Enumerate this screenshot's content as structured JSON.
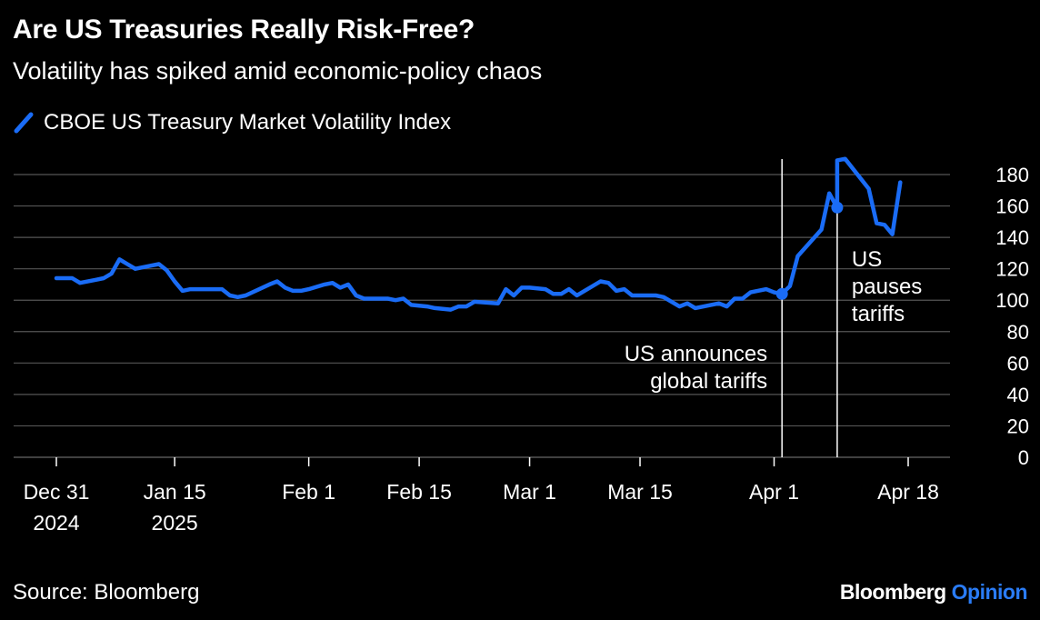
{
  "header": {
    "title": "Are US Treasuries Really Risk-Free?",
    "subtitle": "Volatility has spiked amid economic-policy chaos"
  },
  "footer": {
    "source": "Source: Bloomberg",
    "brand_main": "Bloomberg",
    "brand_accent": "Opinion"
  },
  "colors": {
    "background": "#000000",
    "series": "#1a6cf6",
    "grid": "#555555",
    "text": "#ffffff",
    "brand_accent": "#2a7cf6"
  },
  "chart_data": {
    "type": "line",
    "legend_position": "top-left",
    "grid": true,
    "y_axis_side": "right",
    "ylim": [
      0,
      190
    ],
    "y_ticks": [
      0,
      20,
      40,
      60,
      80,
      100,
      120,
      140,
      160,
      180
    ],
    "x_ticks": [
      {
        "date": "2024-12-31",
        "label": "Dec 31",
        "sublabel": "2024"
      },
      {
        "date": "2025-01-15",
        "label": "Jan 15",
        "sublabel": "2025"
      },
      {
        "date": "2025-02-01",
        "label": "Feb 1",
        "sublabel": ""
      },
      {
        "date": "2025-02-15",
        "label": "Feb 15",
        "sublabel": ""
      },
      {
        "date": "2025-03-01",
        "label": "Mar 1",
        "sublabel": ""
      },
      {
        "date": "2025-03-15",
        "label": "Mar 15",
        "sublabel": ""
      },
      {
        "date": "2025-04-01",
        "label": "Apr 1",
        "sublabel": ""
      },
      {
        "date": "2025-04-18",
        "label": "Apr 18",
        "sublabel": ""
      }
    ],
    "series": [
      {
        "name": "CBOE US Treasury Market Volatility Index",
        "points": [
          {
            "x": "2024-12-31",
            "y": 114
          },
          {
            "x": "2025-01-01",
            "y": 114
          },
          {
            "x": "2025-01-02",
            "y": 114
          },
          {
            "x": "2025-01-03",
            "y": 111
          },
          {
            "x": "2025-01-05",
            "y": 113
          },
          {
            "x": "2025-01-06",
            "y": 114
          },
          {
            "x": "2025-01-07",
            "y": 117
          },
          {
            "x": "2025-01-08",
            "y": 126
          },
          {
            "x": "2025-01-09",
            "y": 123
          },
          {
            "x": "2025-01-10",
            "y": 120
          },
          {
            "x": "2025-01-12",
            "y": 122
          },
          {
            "x": "2025-01-13",
            "y": 123
          },
          {
            "x": "2025-01-14",
            "y": 119
          },
          {
            "x": "2025-01-15",
            "y": 112
          },
          {
            "x": "2025-01-16",
            "y": 106
          },
          {
            "x": "2025-01-17",
            "y": 107
          },
          {
            "x": "2025-01-18",
            "y": 107
          },
          {
            "x": "2025-01-20",
            "y": 107
          },
          {
            "x": "2025-01-21",
            "y": 107
          },
          {
            "x": "2025-01-22",
            "y": 103
          },
          {
            "x": "2025-01-23",
            "y": 102
          },
          {
            "x": "2025-01-24",
            "y": 103
          },
          {
            "x": "2025-01-27",
            "y": 110
          },
          {
            "x": "2025-01-28",
            "y": 112
          },
          {
            "x": "2025-01-29",
            "y": 108
          },
          {
            "x": "2025-01-30",
            "y": 106
          },
          {
            "x": "2025-01-31",
            "y": 106
          },
          {
            "x": "2025-02-01",
            "y": 107
          },
          {
            "x": "2025-02-03",
            "y": 110
          },
          {
            "x": "2025-02-04",
            "y": 111
          },
          {
            "x": "2025-02-05",
            "y": 108
          },
          {
            "x": "2025-02-06",
            "y": 110
          },
          {
            "x": "2025-02-07",
            "y": 103
          },
          {
            "x": "2025-02-08",
            "y": 101
          },
          {
            "x": "2025-02-11",
            "y": 101
          },
          {
            "x": "2025-02-12",
            "y": 100
          },
          {
            "x": "2025-02-13",
            "y": 101
          },
          {
            "x": "2025-02-14",
            "y": 97
          },
          {
            "x": "2025-02-16",
            "y": 96
          },
          {
            "x": "2025-02-17",
            "y": 95
          },
          {
            "x": "2025-02-19",
            "y": 94
          },
          {
            "x": "2025-02-20",
            "y": 96
          },
          {
            "x": "2025-02-21",
            "y": 96
          },
          {
            "x": "2025-02-22",
            "y": 99
          },
          {
            "x": "2025-02-25",
            "y": 98
          },
          {
            "x": "2025-02-26",
            "y": 107
          },
          {
            "x": "2025-02-27",
            "y": 103
          },
          {
            "x": "2025-02-28",
            "y": 108
          },
          {
            "x": "2025-03-01",
            "y": 108
          },
          {
            "x": "2025-03-03",
            "y": 107
          },
          {
            "x": "2025-03-04",
            "y": 104
          },
          {
            "x": "2025-03-05",
            "y": 104
          },
          {
            "x": "2025-03-06",
            "y": 107
          },
          {
            "x": "2025-03-07",
            "y": 103
          },
          {
            "x": "2025-03-10",
            "y": 112
          },
          {
            "x": "2025-03-11",
            "y": 111
          },
          {
            "x": "2025-03-12",
            "y": 106
          },
          {
            "x": "2025-03-13",
            "y": 107
          },
          {
            "x": "2025-03-14",
            "y": 103
          },
          {
            "x": "2025-03-17",
            "y": 103
          },
          {
            "x": "2025-03-18",
            "y": 102
          },
          {
            "x": "2025-03-19",
            "y": 99
          },
          {
            "x": "2025-03-20",
            "y": 96
          },
          {
            "x": "2025-03-21",
            "y": 98
          },
          {
            "x": "2025-03-22",
            "y": 95
          },
          {
            "x": "2025-03-25",
            "y": 98
          },
          {
            "x": "2025-03-26",
            "y": 96
          },
          {
            "x": "2025-03-27",
            "y": 101
          },
          {
            "x": "2025-03-28",
            "y": 101
          },
          {
            "x": "2025-03-29",
            "y": 105
          },
          {
            "x": "2025-03-31",
            "y": 107
          },
          {
            "x": "2025-04-01",
            "y": 105
          },
          {
            "x": "2025-04-02",
            "y": 104
          },
          {
            "x": "2025-04-03",
            "y": 109
          },
          {
            "x": "2025-04-04",
            "y": 128
          },
          {
            "x": "2025-04-07",
            "y": 145
          },
          {
            "x": "2025-04-08",
            "y": 168
          },
          {
            "x": "2025-04-09",
            "y": 159
          },
          {
            "x": "2025-04-09",
            "y": 189
          },
          {
            "x": "2025-04-10",
            "y": 190
          },
          {
            "x": "2025-04-13",
            "y": 171
          },
          {
            "x": "2025-04-14",
            "y": 149
          },
          {
            "x": "2025-04-15",
            "y": 148
          },
          {
            "x": "2025-04-16",
            "y": 142
          },
          {
            "x": "2025-04-17",
            "y": 175
          }
        ]
      }
    ],
    "annotations": [
      {
        "date": "2025-04-02",
        "y": 104,
        "text_lines": [
          "US announces",
          "global tariffs"
        ],
        "align": "right"
      },
      {
        "date": "2025-04-09",
        "y": 159,
        "text_lines": [
          "US",
          "pauses",
          "tariffs"
        ],
        "align": "left"
      }
    ]
  }
}
